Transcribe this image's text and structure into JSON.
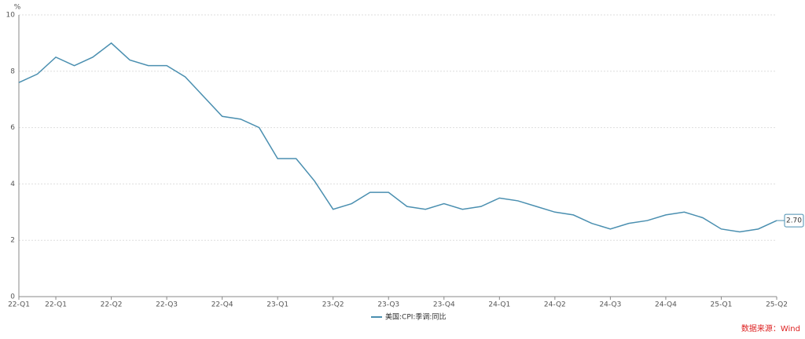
{
  "chart_data": {
    "type": "line",
    "y_unit": "%",
    "categories": [
      "22-Q1",
      null,
      "22-Q1",
      null,
      null,
      "22-Q2",
      null,
      null,
      "22-Q3",
      null,
      null,
      "22-Q4",
      null,
      null,
      "23-Q1",
      null,
      null,
      "23-Q2",
      null,
      null,
      "23-Q3",
      null,
      null,
      "23-Q4",
      null,
      null,
      "24-Q1",
      null,
      null,
      "24-Q2",
      null,
      null,
      "24-Q3",
      null,
      null,
      "24-Q4",
      null,
      null,
      "25-Q1",
      null,
      null,
      "25-Q2"
    ],
    "series": [
      {
        "name": "美国:CPI:季调:同比",
        "color": "#4a8fb0",
        "values": [
          7.6,
          7.9,
          8.5,
          8.2,
          8.5,
          9.0,
          8.4,
          8.2,
          8.2,
          7.8,
          7.1,
          6.4,
          6.3,
          6.0,
          4.9,
          4.9,
          4.1,
          3.1,
          3.3,
          3.7,
          3.7,
          3.2,
          3.1,
          3.3,
          3.1,
          3.2,
          3.5,
          3.4,
          3.2,
          3.0,
          2.9,
          2.6,
          2.4,
          2.6,
          2.7,
          2.9,
          3.0,
          2.8,
          2.4,
          2.3,
          2.4,
          2.7
        ],
        "value_labels": [
          null,
          null,
          null,
          null,
          null,
          null,
          null,
          null,
          null,
          null,
          null,
          null,
          null,
          null,
          null,
          null,
          null,
          null,
          null,
          null,
          null,
          null,
          null,
          null,
          null,
          null,
          null,
          null,
          null,
          null,
          null,
          null,
          null,
          null,
          null,
          null,
          null,
          null,
          null,
          null,
          null,
          "2.70"
        ]
      }
    ],
    "ylim": [
      0,
      10
    ],
    "yticks": [
      0,
      2,
      4,
      6,
      8,
      10
    ],
    "grid": true,
    "legend": "bottom",
    "source": "数据来源：Wind"
  }
}
